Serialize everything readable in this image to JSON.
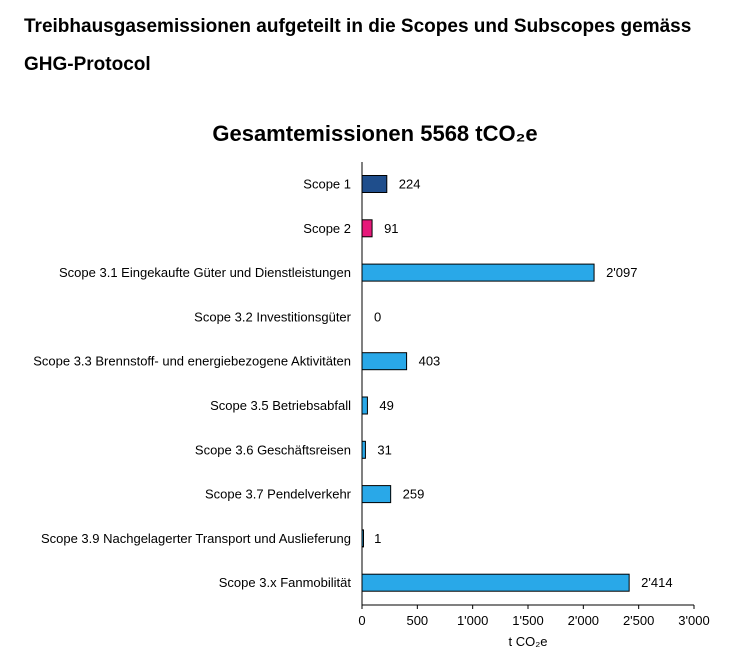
{
  "page": {
    "heading": "Treibhausgasemissionen aufgeteilt in die Scopes und Subscopes gemäss GHG-Protocol"
  },
  "chart_data": {
    "type": "bar",
    "orientation": "horizontal",
    "title": "Gesamtemissionen 5568 tCO₂e",
    "xlabel": "t CO₂e",
    "ylabel": "",
    "xlim": [
      0,
      3000
    ],
    "ticks": [
      0,
      500,
      1000,
      1500,
      2000,
      2500,
      3000
    ],
    "tick_labels": [
      "0",
      "500",
      "1'000",
      "1'500",
      "2'000",
      "2'500",
      "3'000"
    ],
    "grid": false,
    "categories": [
      "Scope 1",
      "Scope 2",
      "Scope 3.1 Eingekaufte Güter und Dienstleistungen",
      "Scope 3.2 Investitionsgüter",
      "Scope 3.3 Brennstoff- und energiebezogene Aktivitäten",
      "Scope 3.5 Betriebsabfall",
      "Scope 3.6 Geschäftsreisen",
      "Scope 3.7 Pendelverkehr",
      "Scope 3.9 Nachgelagerter Transport und Auslieferung",
      "Scope 3.x Fanmobilität"
    ],
    "values": [
      224,
      91,
      2097,
      0,
      403,
      49,
      31,
      259,
      1,
      2414
    ],
    "value_labels": [
      "224",
      "91",
      "2'097",
      "0",
      "403",
      "49",
      "31",
      "259",
      "1",
      "2'414"
    ],
    "colors": [
      "#1f4e8c",
      "#e6197a",
      "#29a8e8",
      "#29a8e8",
      "#29a8e8",
      "#29a8e8",
      "#29a8e8",
      "#29a8e8",
      "#29a8e8",
      "#29a8e8"
    ]
  }
}
